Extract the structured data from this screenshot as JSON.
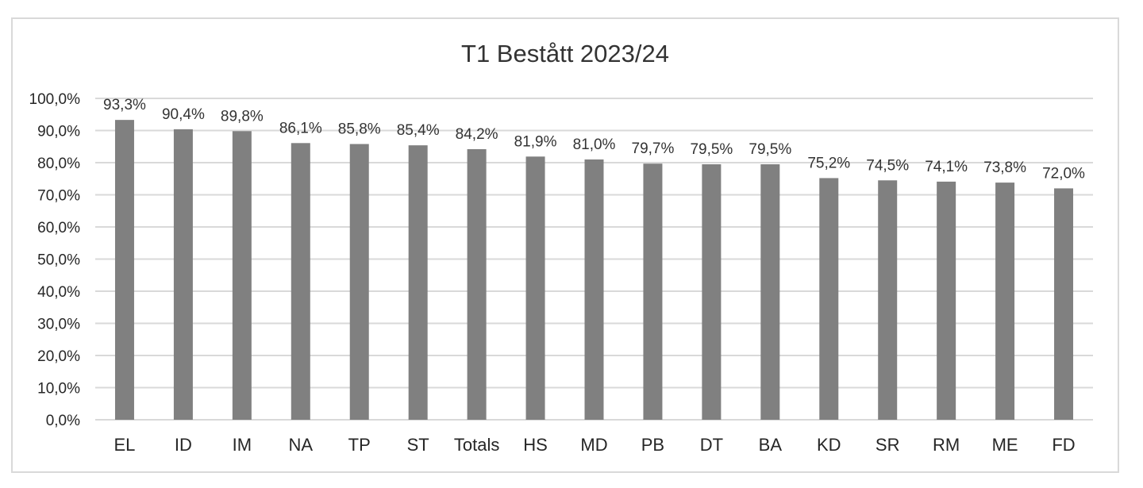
{
  "chart_data": {
    "type": "bar",
    "title": "T1 Bestått 2023/24",
    "categories": [
      "EL",
      "ID",
      "IM",
      "NA",
      "TP",
      "ST",
      "Totals",
      "HS",
      "MD",
      "PB",
      "DT",
      "BA",
      "KD",
      "SR",
      "RM",
      "ME",
      "FD"
    ],
    "values": [
      93.3,
      90.4,
      89.8,
      86.1,
      85.8,
      85.4,
      84.2,
      81.9,
      81.0,
      79.7,
      79.5,
      79.5,
      75.2,
      74.5,
      74.1,
      73.8,
      72.0
    ],
    "data_labels": [
      "93,3%",
      "90,4%",
      "89,8%",
      "86,1%",
      "85,8%",
      "85,4%",
      "84,2%",
      "81,9%",
      "81,0%",
      "79,7%",
      "79,5%",
      "79,5%",
      "75,2%",
      "74,5%",
      "74,1%",
      "73,8%",
      "72,0%"
    ],
    "y_ticks": [
      0,
      10,
      20,
      30,
      40,
      50,
      60,
      70,
      80,
      90,
      100
    ],
    "y_tick_labels": [
      "0,0%",
      "10,0%",
      "20,0%",
      "30,0%",
      "40,0%",
      "50,0%",
      "60,0%",
      "70,0%",
      "80,0%",
      "90,0%",
      "100,0%"
    ],
    "ylim": [
      0,
      100
    ],
    "xlabel": "",
    "ylabel": "",
    "grid": true,
    "legend": "none",
    "bar_color": "#808080",
    "grid_color": "#d9d9d9"
  }
}
